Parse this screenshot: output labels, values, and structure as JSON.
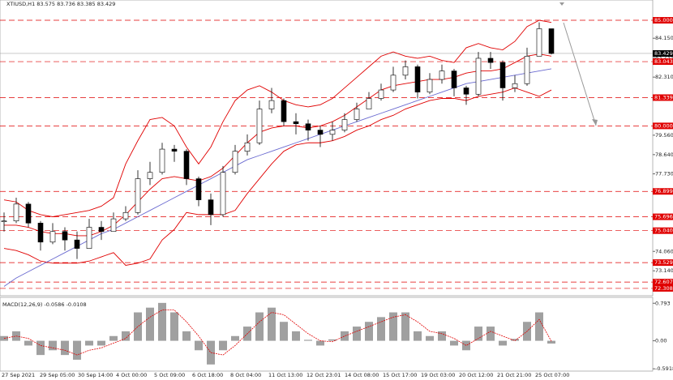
{
  "chart_data": {
    "type": "candlestick",
    "title": "XTIUSD,H1  83.575 83.736 83.385 83.429",
    "ylim": [
      71.96,
      85.96
    ],
    "yticks": [
      {
        "value": 84.15,
        "label": "84.150"
      },
      {
        "value": 83.235,
        "label": "83.235"
      },
      {
        "value": 82.31,
        "label": "82.310"
      },
      {
        "value": 79.56,
        "label": "79.560"
      },
      {
        "value": 78.64,
        "label": "78.640"
      },
      {
        "value": 77.73,
        "label": "77.730"
      },
      {
        "value": 74.06,
        "label": "74.060"
      },
      {
        "value": 73.14,
        "label": "73.140"
      }
    ],
    "levels": [
      {
        "value": 85,
        "label": "85.000"
      },
      {
        "value": 83.043,
        "label": "83.043"
      },
      {
        "value": 81.339,
        "label": "81.339"
      },
      {
        "value": 80,
        "label": "80.000"
      },
      {
        "value": 76.899,
        "label": "76.899"
      },
      {
        "value": 75.696,
        "label": "75.696"
      },
      {
        "value": 75.04,
        "label": "75.040"
      },
      {
        "value": 73.529,
        "label": "73.529"
      },
      {
        "value": 72.607,
        "label": "72.607"
      },
      {
        "value": 72.308,
        "label": "72.308"
      }
    ],
    "level_color": "#e00000",
    "current_price": {
      "value": 83.429,
      "label": "83.429"
    },
    "xticks": [
      "27 Sep 2021",
      "29 Sep 05:00",
      "30 Sep 14:00",
      "4 Oct 00:00",
      "5 Oct 09:00",
      "6 Oct 18:00",
      "8 Oct 04:00",
      "11 Oct 13:00",
      "12 Oct 23:01",
      "14 Oct 08:00",
      "15 Oct 17:00",
      "19 Oct 03:00",
      "20 Oct 12:00",
      "21 Oct 21:00",
      "25 Oct 07:00"
    ],
    "close": [
      75.5,
      76.3,
      75.4,
      74.5,
      75.0,
      74.6,
      74.2,
      75.2,
      75.0,
      75.6,
      75.9,
      77.5,
      77.8,
      78.9,
      78.8,
      77.5,
      76.5,
      75.8,
      77.8,
      78.8,
      79.2,
      80.8,
      81.2,
      80.2,
      80.1,
      79.8,
      79.6,
      79.8,
      80.3,
      80.8,
      81.3,
      81.7,
      82.4,
      82.8,
      81.6,
      82.2,
      82.6,
      81.8,
      81.5,
      83.2,
      83.0,
      81.8,
      82.0,
      83.3,
      84.6,
      83.429
    ],
    "high": [
      75.9,
      76.6,
      76.4,
      75.5,
      75.4,
      75.2,
      75.0,
      75.6,
      75.5,
      75.9,
      76.2,
      77.9,
      78.3,
      79.2,
      79.1,
      78.9,
      77.6,
      76.8,
      78.1,
      79.1,
      79.6,
      81.2,
      81.8,
      81.3,
      80.6,
      80.3,
      80.0,
      80.2,
      80.6,
      81.1,
      81.6,
      82.0,
      82.8,
      83.1,
      82.9,
      82.5,
      82.9,
      82.7,
      81.9,
      83.5,
      83.5,
      83.1,
      82.4,
      83.7,
      84.9,
      83.736
    ],
    "low": [
      75.0,
      75.4,
      75.2,
      74.1,
      74.4,
      74.1,
      73.7,
      74.2,
      74.6,
      75.0,
      75.5,
      75.8,
      77.2,
      77.7,
      78.3,
      77.2,
      76.2,
      75.3,
      75.7,
      77.7,
      78.6,
      79.1,
      80.6,
      80.0,
      79.6,
      79.3,
      79.0,
      79.3,
      79.7,
      80.2,
      80.8,
      81.2,
      81.6,
      82.2,
      81.3,
      81.5,
      82.0,
      81.4,
      81.0,
      81.4,
      82.7,
      81.2,
      81.6,
      81.9,
      83.3,
      83.385
    ],
    "bands": [
      {
        "name": "upper",
        "color": "#e00000",
        "values": [
          76.5,
          76.4,
          76.0,
          75.8,
          75.7,
          75.8,
          75.9,
          76.0,
          76.2,
          76.6,
          78.2,
          79.3,
          80.3,
          80.4,
          80.0,
          79.0,
          78.2,
          79.0,
          80.2,
          81.2,
          81.7,
          81.9,
          81.6,
          81.2,
          81.0,
          80.9,
          81.0,
          81.3,
          81.8,
          82.3,
          82.8,
          83.3,
          83.5,
          83.3,
          83.2,
          83.3,
          83.1,
          83.0,
          83.7,
          83.9,
          83.7,
          83.6,
          84.0,
          84.7,
          85.0,
          84.9
        ]
      },
      {
        "name": "middle",
        "color": "#e00000",
        "values": [
          75.3,
          75.3,
          75.2,
          75.0,
          74.9,
          74.9,
          74.8,
          74.8,
          75.0,
          75.3,
          75.8,
          76.4,
          77.0,
          77.5,
          77.6,
          77.5,
          77.4,
          77.6,
          78.0,
          78.6,
          79.2,
          79.7,
          79.9,
          80.0,
          80.0,
          79.9,
          80.0,
          80.2,
          80.5,
          80.9,
          81.3,
          81.7,
          81.9,
          82.0,
          82.1,
          82.2,
          82.2,
          82.3,
          82.5,
          82.6,
          82.6,
          82.7,
          83.0,
          83.3,
          83.4,
          83.3
        ]
      },
      {
        "name": "lower",
        "color": "#e00000",
        "values": [
          74.2,
          74.1,
          73.9,
          73.6,
          73.5,
          73.5,
          73.5,
          73.6,
          73.8,
          74.0,
          73.4,
          73.5,
          73.7,
          74.6,
          75.1,
          75.9,
          75.8,
          75.8,
          75.8,
          76.0,
          76.8,
          77.5,
          78.2,
          78.8,
          79.1,
          79.2,
          79.2,
          79.3,
          79.5,
          79.8,
          80.0,
          80.3,
          80.5,
          80.8,
          81.0,
          81.2,
          81.3,
          81.3,
          81.2,
          81.4,
          81.5,
          81.6,
          81.8,
          81.6,
          81.4,
          81.7
        ]
      },
      {
        "name": "ma",
        "color": "#6a6ad0",
        "values": [
          72.4,
          72.8,
          73.1,
          73.4,
          73.7,
          74.0,
          74.3,
          74.6,
          74.9,
          75.1,
          75.4,
          75.7,
          76.0,
          76.3,
          76.6,
          76.9,
          77.2,
          77.5,
          77.8,
          78.1,
          78.4,
          78.6,
          78.8,
          79.0,
          79.2,
          79.4,
          79.6,
          79.8,
          80.0,
          80.2,
          80.4,
          80.6,
          80.8,
          81.0,
          81.2,
          81.4,
          81.6,
          81.8,
          82.0,
          82.1,
          82.2,
          82.3,
          82.4,
          82.5,
          82.6,
          82.7
        ]
      }
    ],
    "macd": {
      "title": "MACD(12,26,9) -0.0586 -0.0108",
      "ylim": [
        -0.64,
        0.9
      ],
      "yticks": [
        {
          "value": 0.793,
          "label": "0.793"
        },
        {
          "value": 0,
          "label": "0.00"
        },
        {
          "value": -0.5918,
          "label": "-0.5918"
        }
      ],
      "histogram": [
        0.1,
        0.2,
        -0.1,
        -0.3,
        -0.2,
        -0.3,
        -0.4,
        -0.1,
        -0.1,
        0.1,
        0.2,
        0.6,
        0.7,
        0.8,
        0.6,
        0.2,
        -0.2,
        -0.5,
        -0.2,
        0.1,
        0.3,
        0.6,
        0.7,
        0.4,
        0.2,
        0.02,
        -0.1,
        0.03,
        0.2,
        0.3,
        0.4,
        0.5,
        0.6,
        0.6,
        0.2,
        0.1,
        0.2,
        -0.1,
        -0.2,
        0.3,
        0.3,
        -0.1,
        0.04,
        0.4,
        0.6,
        -0.0586
      ],
      "signal": [
        0.05,
        0.1,
        0.05,
        -0.1,
        -0.15,
        -0.2,
        -0.3,
        -0.2,
        -0.15,
        -0.05,
        0.05,
        0.3,
        0.5,
        0.65,
        0.65,
        0.4,
        0.1,
        -0.25,
        -0.3,
        -0.1,
        0.15,
        0.4,
        0.6,
        0.55,
        0.35,
        0.15,
        0.0,
        -0.02,
        0.1,
        0.2,
        0.3,
        0.4,
        0.5,
        0.55,
        0.4,
        0.2,
        0.15,
        0.05,
        -0.1,
        0.05,
        0.2,
        0.1,
        0.0,
        0.2,
        0.45,
        -0.0108
      ],
      "color": "#a0a0a0",
      "signal_color": "#e00000"
    }
  }
}
